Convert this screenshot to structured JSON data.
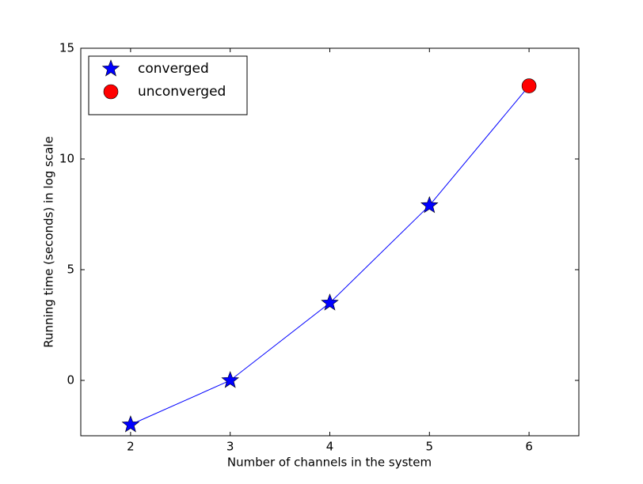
{
  "chart_data": {
    "type": "line",
    "x_label": "Number of channels in the system",
    "y_label": "Running time (seconds) in log scale",
    "xlim": [
      1.5,
      6.5
    ],
    "ylim": [
      -2.5,
      15
    ],
    "xticks": [
      2,
      3,
      4,
      5,
      6
    ],
    "yticks": [
      0,
      5,
      10,
      15
    ],
    "line_color": "#0000ff",
    "legend": "upper left",
    "series": [
      {
        "name": "converged",
        "color": "#0000ff",
        "marker": "star",
        "x": [
          2,
          3,
          4,
          5
        ],
        "values": [
          -2,
          0,
          3.5,
          7.9
        ]
      },
      {
        "name": "unconverged",
        "color": "#ff0000",
        "marker": "circle",
        "x": [
          6
        ],
        "values": [
          13.3
        ]
      }
    ]
  }
}
